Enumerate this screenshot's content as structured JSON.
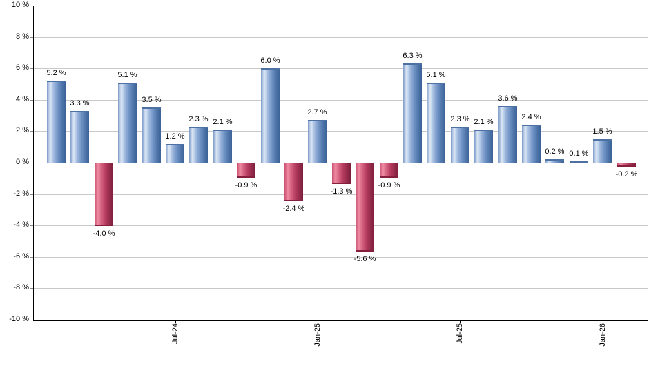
{
  "chart_data": {
    "type": "bar",
    "title": "",
    "xlabel": "",
    "ylabel": "",
    "ylim": [
      -10,
      10
    ],
    "grid": true,
    "legend": "none",
    "y_ticks": [
      10,
      8,
      6,
      4,
      2,
      0,
      -2,
      -4,
      -6,
      -8,
      -10
    ],
    "y_tick_suffix": " %",
    "bar_label_suffix": " %",
    "values": [
      5.2,
      3.3,
      -4.0,
      5.1,
      3.5,
      1.2,
      2.3,
      2.1,
      -0.9,
      6.0,
      -2.4,
      2.7,
      -1.3,
      -5.6,
      -0.9,
      6.3,
      5.1,
      2.3,
      2.1,
      3.6,
      2.4,
      0.2,
      0.1,
      1.5,
      -0.2
    ],
    "x_ticks": [
      {
        "bar_index": 5,
        "label": "Jul-24"
      },
      {
        "bar_index": 11,
        "label": "Jan-25"
      },
      {
        "bar_index": 17,
        "label": "Jul-25"
      },
      {
        "bar_index": 23,
        "label": "Jan-26"
      }
    ],
    "colors": {
      "positive_gradient": [
        "#7e9cc9 0%",
        "#dde8f6 18%",
        "#9cb6dc 38%",
        "#6e92c4 60%",
        "#4d74a9 82%",
        "#3c6298 100%"
      ],
      "positive_cap": "#4e71a3",
      "negative_gradient": [
        "#c9506f 0%",
        "#ef8aa2 18%",
        "#d25f7e 38%",
        "#b33a5d 60%",
        "#932a4a 82%",
        "#7d1f3c 100%"
      ],
      "negative_cap": "#841f3e",
      "grid": "#c9c9c9",
      "axis": "#000000",
      "tick": "#888888",
      "label_text": "#000000"
    }
  }
}
